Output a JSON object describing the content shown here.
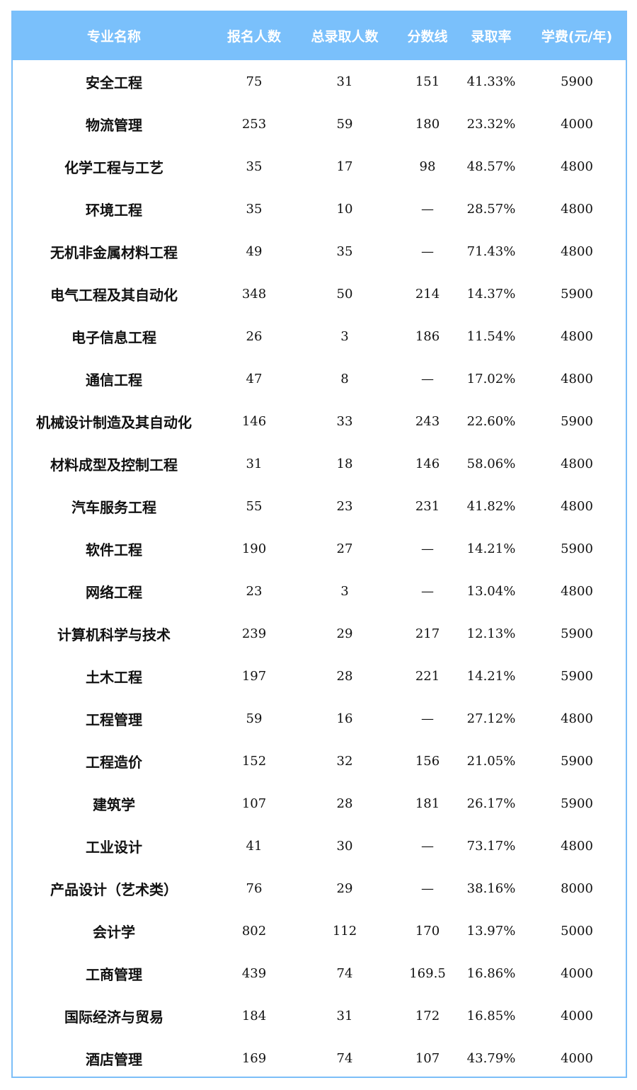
{
  "table": {
    "headers": [
      "专业名称",
      "报名人数",
      "总录取人数",
      "分数线",
      "录取率",
      "学费(元/年)"
    ],
    "rows": [
      [
        "安全工程",
        "75",
        "31",
        "151",
        "41.33%",
        "5900"
      ],
      [
        "物流管理",
        "253",
        "59",
        "180",
        "23.32%",
        "4000"
      ],
      [
        "化学工程与工艺",
        "35",
        "17",
        "98",
        "48.57%",
        "4800"
      ],
      [
        "环境工程",
        "35",
        "10",
        "—",
        "28.57%",
        "4800"
      ],
      [
        "无机非金属材料工程",
        "49",
        "35",
        "—",
        "71.43%",
        "4800"
      ],
      [
        "电气工程及其自动化",
        "348",
        "50",
        "214",
        "14.37%",
        "5900"
      ],
      [
        "电子信息工程",
        "26",
        "3",
        "186",
        "11.54%",
        "4800"
      ],
      [
        "通信工程",
        "47",
        "8",
        "—",
        "17.02%",
        "4800"
      ],
      [
        "机械设计制造及其自动化",
        "146",
        "33",
        "243",
        "22.60%",
        "5900"
      ],
      [
        "材料成型及控制工程",
        "31",
        "18",
        "146",
        "58.06%",
        "4800"
      ],
      [
        "汽车服务工程",
        "55",
        "23",
        "231",
        "41.82%",
        "4800"
      ],
      [
        "软件工程",
        "190",
        "27",
        "—",
        "14.21%",
        "5900"
      ],
      [
        "网络工程",
        "23",
        "3",
        "—",
        "13.04%",
        "4800"
      ],
      [
        "计算机科学与技术",
        "239",
        "29",
        "217",
        "12.13%",
        "5900"
      ],
      [
        "土木工程",
        "197",
        "28",
        "221",
        "14.21%",
        "5900"
      ],
      [
        "工程管理",
        "59",
        "16",
        "—",
        "27.12%",
        "4800"
      ],
      [
        "工程造价",
        "152",
        "32",
        "156",
        "21.05%",
        "5900"
      ],
      [
        "建筑学",
        "107",
        "28",
        "181",
        "26.17%",
        "5900"
      ],
      [
        "工业设计",
        "41",
        "30",
        "—",
        "73.17%",
        "4800"
      ],
      [
        "产品设计（艺术类）",
        "76",
        "29",
        "—",
        "38.16%",
        "8000"
      ],
      [
        "会计学",
        "802",
        "112",
        "170",
        "13.97%",
        "5000"
      ],
      [
        "工商管理",
        "439",
        "74",
        "169.5",
        "16.86%",
        "4000"
      ],
      [
        "国际经济与贸易",
        "184",
        "31",
        "172",
        "16.85%",
        "4000"
      ],
      [
        "酒店管理",
        "169",
        "74",
        "107",
        "43.79%",
        "4000"
      ]
    ]
  },
  "colors": {
    "header_bg": "#7ac0fb",
    "border": "#7cbef8"
  }
}
